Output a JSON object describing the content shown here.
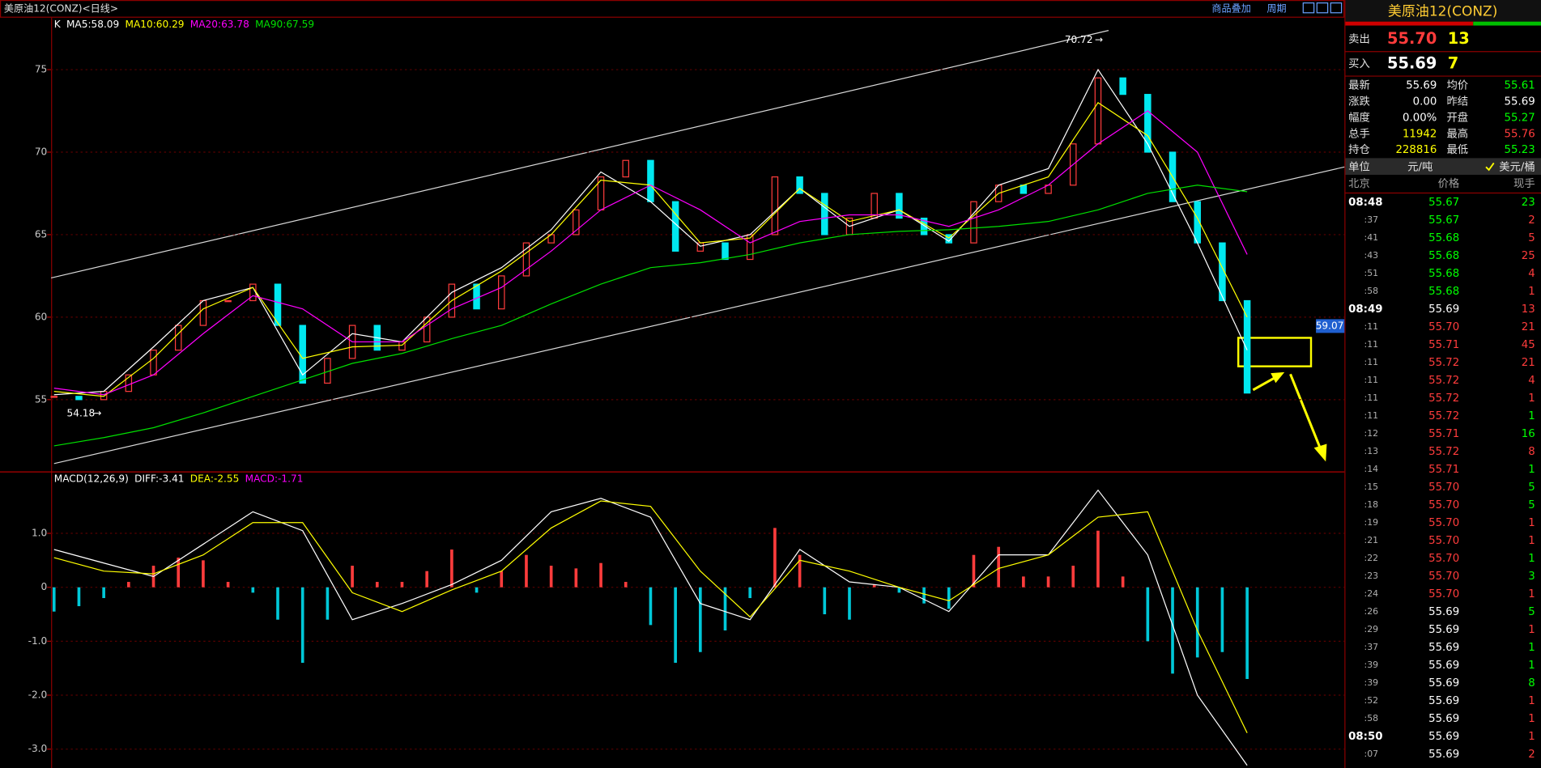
{
  "window": {
    "title": "美原油12(CONZ)<日线>",
    "buttons": [
      "商品叠加",
      "周期"
    ]
  },
  "chart_data": [
    {
      "type": "candlestick",
      "colors": {
        "up": "#ff3c3c",
        "down": "#00e8f0"
      },
      "ylim": [
        50.77,
        78.15
      ],
      "yticks": [
        55,
        60,
        65,
        70,
        75
      ],
      "grid": true,
      "annotations": {
        "high": "70.72",
        "low": "54.18",
        "cursor": "59.07"
      },
      "series": [
        {
          "name": "K",
          "color": "#ffffff",
          "values": [
            55.2,
            55.0,
            55.5,
            56.5,
            58,
            59.5,
            61,
            61,
            62,
            59.5,
            56,
            57.5,
            59.5,
            58,
            58.5,
            60,
            62,
            60.5,
            62.5,
            64.5,
            65,
            66.5,
            68.5,
            69.5,
            67,
            64,
            64.5,
            63.5,
            65,
            68.5,
            67.5,
            65,
            66,
            67.5,
            66,
            65,
            64.5,
            67,
            68,
            67.5,
            68,
            70.5,
            74.5,
            73.5,
            70,
            67,
            64.5,
            61,
            55.4
          ]
        },
        {
          "name": "MA5:58.09",
          "color": "#ffffff",
          "values": [
            55.3,
            55.5,
            58.2,
            61,
            61.8,
            56.5,
            59,
            58.5,
            61.5,
            63,
            65.3,
            68.8,
            67,
            64.3,
            65,
            67.8,
            65.5,
            66.5,
            64.6,
            68,
            69,
            75,
            70.5,
            64.5,
            58
          ]
        },
        {
          "name": "MA10:60.29",
          "color": "#ffff00",
          "values": [
            55.5,
            55.2,
            57.5,
            60.5,
            61.8,
            57.5,
            58.2,
            58.3,
            61,
            62.8,
            65,
            68.3,
            68,
            64.5,
            64.8,
            67.8,
            65.8,
            66.5,
            64.8,
            67.5,
            68.5,
            73,
            71,
            66,
            60
          ]
        },
        {
          "name": "MA20:63.78",
          "color": "#ff00ff",
          "values": [
            55.7,
            55.3,
            56.5,
            59,
            61.3,
            60.5,
            58.5,
            58.5,
            60.5,
            61.8,
            64,
            66.5,
            68,
            66.5,
            64.5,
            65.8,
            66.2,
            66.2,
            65.5,
            66.5,
            68,
            70.5,
            72.5,
            70,
            63.8
          ]
        },
        {
          "name": "MA90:67.59",
          "color": "#00e000",
          "values": [
            52.2,
            52.7,
            53.3,
            54.2,
            55.2,
            56.2,
            57.2,
            57.8,
            58.7,
            59.5,
            60.8,
            62,
            63,
            63.3,
            63.8,
            64.5,
            65,
            65.2,
            65.3,
            65.5,
            65.8,
            66.5,
            67.5,
            68,
            67.6
          ]
        }
      ]
    },
    {
      "type": "macd",
      "title": "MACD(12,26,9)",
      "colors": {
        "up": "#ff3c3c",
        "down": "#00c8d8"
      },
      "ylim": [
        -3.35,
        2.13
      ],
      "yticks": [
        {
          "value": 1,
          "label": "1.0"
        },
        0,
        {
          "value": -1,
          "label": "-1.0"
        },
        {
          "value": -2,
          "label": "-2.0"
        },
        {
          "value": -3,
          "label": "-3.0"
        }
      ],
      "grid": true,
      "series": [
        {
          "name": "DIFF:-3.41",
          "color": "#ffffff",
          "values": [
            0.7,
            0.45,
            0.2,
            0.8,
            1.4,
            1.05,
            -0.6,
            -0.3,
            0.05,
            0.5,
            1.4,
            1.65,
            1.3,
            -0.3,
            -0.6,
            0.7,
            0.1,
            0,
            -0.45,
            0.6,
            0.6,
            1.8,
            0.6,
            -2.0,
            -3.3
          ]
        },
        {
          "name": "DEA:-2.55",
          "color": "#ffff00",
          "values": [
            0.55,
            0.3,
            0.25,
            0.6,
            1.2,
            1.2,
            -0.1,
            -0.45,
            -0.05,
            0.3,
            1.1,
            1.6,
            1.5,
            0.3,
            -0.55,
            0.5,
            0.3,
            0,
            -0.25,
            0.35,
            0.6,
            1.3,
            1.4,
            -0.8,
            -2.7
          ]
        },
        {
          "name": "MACD:-1.71",
          "color": "#ff00ff",
          "values": [
            -0.45,
            -0.35,
            -0.2,
            0.1,
            0.4,
            0.55,
            0.5,
            0.1,
            -0.1,
            -0.6,
            -1.4,
            -0.6,
            0.4,
            0.1,
            0.1,
            0.3,
            0.7,
            -0.1,
            0.3,
            0.6,
            0.4,
            0.35,
            0.45,
            0.1,
            -0.7,
            -1.4,
            -1.2,
            -0.8,
            -0.2,
            1.1,
            0.6,
            -0.5,
            -0.6,
            0.05,
            -0.1,
            -0.3,
            -0.4,
            0.6,
            0.75,
            0.2,
            0.2,
            0.4,
            1.05,
            0.2,
            -1,
            -1.6,
            -1.3,
            -1.2,
            -1.7
          ]
        }
      ]
    }
  ],
  "quote_panel": {
    "title": "美原油12(CONZ)",
    "ask": {
      "label": "卖出",
      "price": "55.70",
      "volume": 13
    },
    "bid": {
      "label": "买入",
      "price": "55.69",
      "volume": 7
    },
    "stats": [
      [
        "最新",
        "55.69",
        "均价",
        "55.61"
      ],
      [
        "涨跌",
        "0.00",
        "昨结",
        "55.69"
      ],
      [
        "幅度",
        "0.00%",
        "开盘",
        "55.27"
      ],
      [
        "总手",
        "11942",
        "最高",
        "55.76"
      ],
      [
        "持仓",
        "228816",
        "最低",
        "55.23"
      ]
    ],
    "stat_colors": [
      [
        "#ffffff",
        "#00ff00"
      ],
      [
        "#ffffff",
        "#ffffff"
      ],
      [
        "#ffffff",
        "#00ff00"
      ],
      [
        "#ffff00",
        "#ff3c3c"
      ],
      [
        "#ffff00",
        "#00ff00"
      ]
    ],
    "unit": [
      "单位",
      "元/吨",
      "美元/桶"
    ],
    "columns": [
      "北京",
      "价格",
      "现手"
    ],
    "reference": "55.69",
    "trades": [
      [
        "08:48",
        "55.67",
        23,
        "#00ff00"
      ],
      [
        ":37",
        "55.67",
        2,
        "#ff3c3c"
      ],
      [
        ":41",
        "55.68",
        5,
        "#ff3c3c"
      ],
      [
        ":43",
        "55.68",
        25,
        "#ff3c3c"
      ],
      [
        ":51",
        "55.68",
        4,
        "#ff3c3c"
      ],
      [
        ":58",
        "55.68",
        1,
        "#ff3c3c"
      ],
      [
        "08:49",
        "55.69",
        13,
        "#ff3c3c"
      ],
      [
        ":11",
        "55.70",
        21,
        "#ff3c3c"
      ],
      [
        ":11",
        "55.71",
        45,
        "#ff3c3c"
      ],
      [
        ":11",
        "55.72",
        21,
        "#ff3c3c"
      ],
      [
        ":11",
        "55.72",
        4,
        "#ff3c3c"
      ],
      [
        ":11",
        "55.72",
        1,
        "#ff3c3c"
      ],
      [
        ":11",
        "55.72",
        1,
        "#00ff00"
      ],
      [
        ":12",
        "55.71",
        16,
        "#00ff00"
      ],
      [
        ":13",
        "55.72",
        8,
        "#ff3c3c"
      ],
      [
        ":14",
        "55.71",
        1,
        "#00ff00"
      ],
      [
        ":15",
        "55.70",
        5,
        "#00ff00"
      ],
      [
        ":18",
        "55.70",
        5,
        "#00ff00"
      ],
      [
        ":19",
        "55.70",
        1,
        "#ff3c3c"
      ],
      [
        ":21",
        "55.70",
        1,
        "#ff3c3c"
      ],
      [
        ":22",
        "55.70",
        1,
        "#00ff00"
      ],
      [
        ":23",
        "55.70",
        3,
        "#00ff00"
      ],
      [
        ":24",
        "55.70",
        1,
        "#ff3c3c"
      ],
      [
        ":26",
        "55.69",
        5,
        "#00ff00"
      ],
      [
        ":29",
        "55.69",
        1,
        "#ff3c3c"
      ],
      [
        ":37",
        "55.69",
        1,
        "#00ff00"
      ],
      [
        ":39",
        "55.69",
        1,
        "#00ff00"
      ],
      [
        ":39",
        "55.69",
        8,
        "#00ff00"
      ],
      [
        ":52",
        "55.69",
        1,
        "#ff3c3c"
      ],
      [
        ":58",
        "55.69",
        1,
        "#ff3c3c"
      ],
      [
        "08:50",
        "55.69",
        1,
        "#ff3c3c"
      ],
      [
        ":07",
        "55.69",
        2,
        "#ff3c3c"
      ]
    ]
  }
}
